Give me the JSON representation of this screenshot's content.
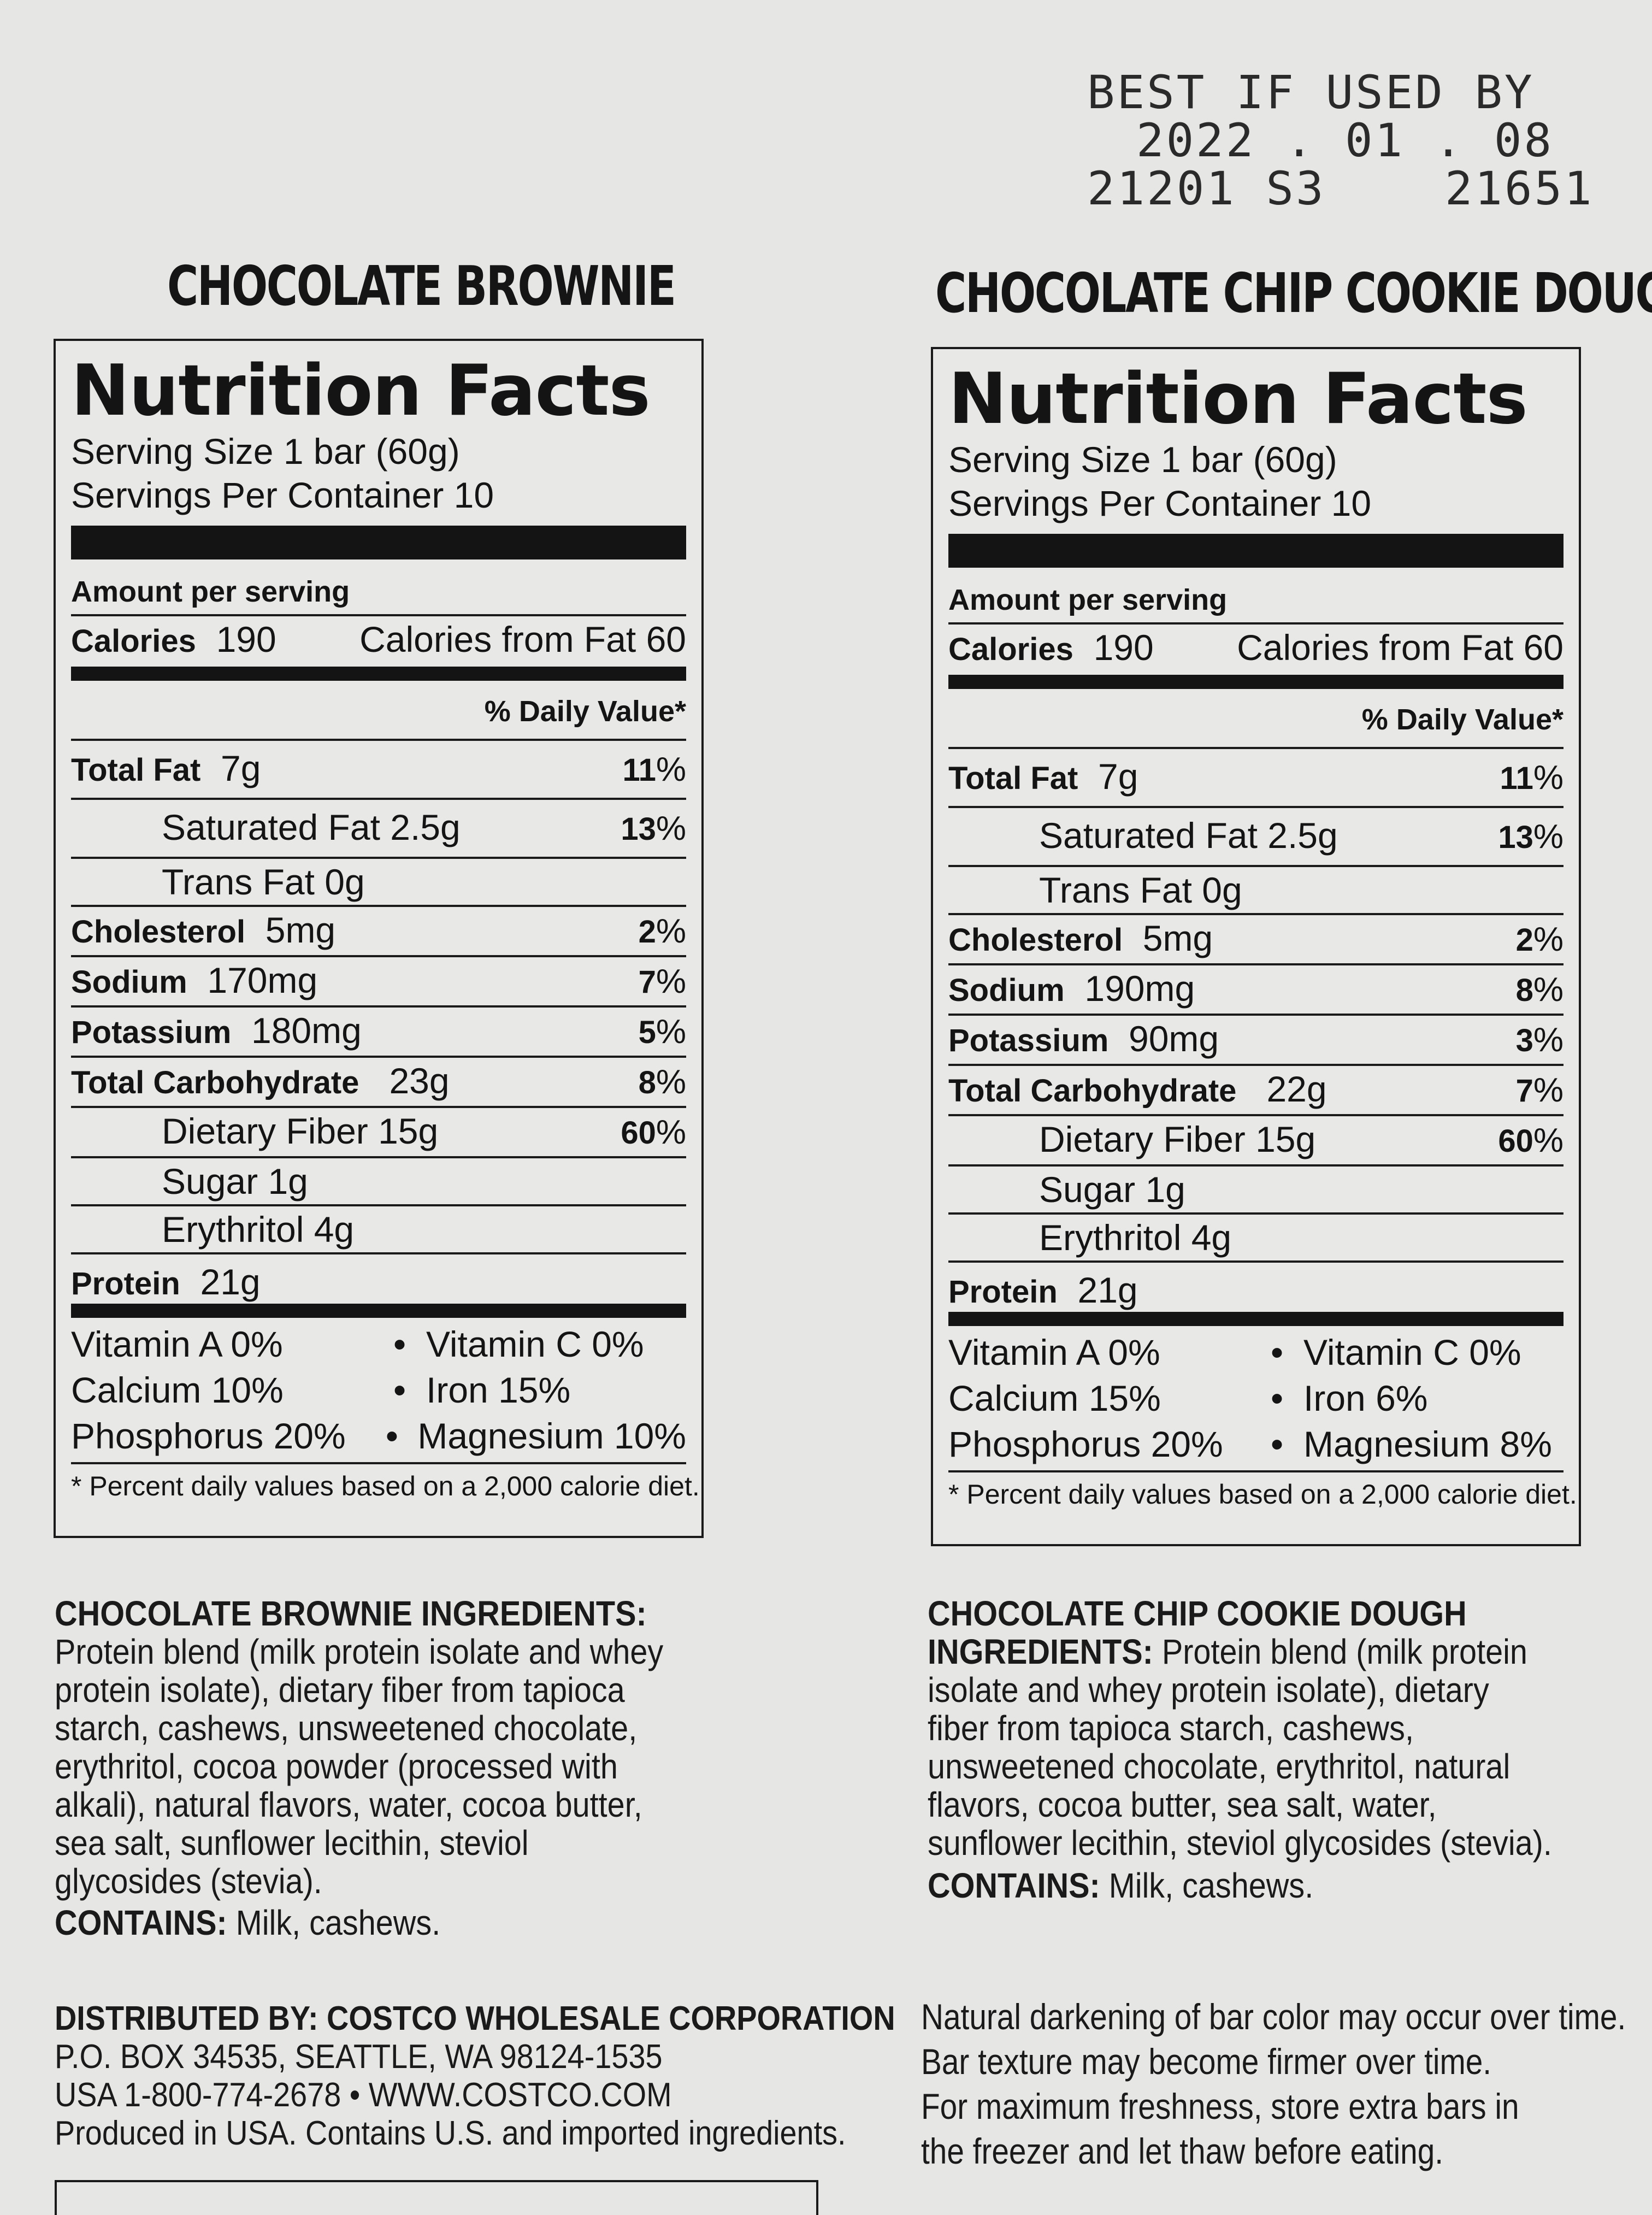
{
  "stamp": {
    "line1": "BEST IF USED BY",
    "line2": "2022 . 01 . 08",
    "line3": "21201 S3    21651"
  },
  "panels": [
    {
      "title": "CHOCOLATE BROWNIE",
      "nf_title": "Nutrition Facts",
      "serving_size": "Serving Size 1 bar (60g)",
      "servings_per_container": "Servings Per Container 10",
      "amount_per_serving": "Amount per serving",
      "calories_label": "Calories",
      "calories_value": "190",
      "calories_from_fat": "Calories from Fat 60",
      "daily_value_header": "% Daily Value*",
      "total_fat": {
        "label": "Total Fat",
        "amount": "7g",
        "pct": "11"
      },
      "saturated_fat": {
        "label": "Saturated Fat 2.5g",
        "pct": "13"
      },
      "trans_fat": {
        "label": "Trans Fat 0g"
      },
      "cholesterol": {
        "label": "Cholesterol",
        "amount": "5mg",
        "pct": "2"
      },
      "sodium": {
        "label": "Sodium",
        "amount": "170mg",
        "pct": "7"
      },
      "potassium": {
        "label": "Potassium",
        "amount": "180mg",
        "pct": "5"
      },
      "total_carb": {
        "label": "Total Carbohydrate",
        "amount": "23g",
        "pct": "8"
      },
      "dietary_fiber": {
        "label": "Dietary Fiber 15g",
        "pct": "60"
      },
      "sugar": {
        "label": "Sugar 1g"
      },
      "erythritol": {
        "label": "Erythritol 4g"
      },
      "protein": {
        "label": "Protein",
        "amount": "21g"
      },
      "vitamins": [
        {
          "left": "Vitamin A 0%",
          "right": "Vitamin C 0%"
        },
        {
          "left": "Calcium 10%",
          "right": "Iron 15%"
        },
        {
          "left": "Phosphorus 20%",
          "right": "Magnesium 10%"
        }
      ],
      "footnote": "* Percent daily values based on a 2,000 calorie diet."
    },
    {
      "title": "CHOCOLATE CHIP COOKIE DOUGH",
      "nf_title": "Nutrition Facts",
      "serving_size": "Serving Size 1 bar (60g)",
      "servings_per_container": "Servings Per Container 10",
      "amount_per_serving": "Amount per serving",
      "calories_label": "Calories",
      "calories_value": "190",
      "calories_from_fat": "Calories from Fat 60",
      "daily_value_header": "% Daily Value*",
      "total_fat": {
        "label": "Total Fat",
        "amount": "7g",
        "pct": "11"
      },
      "saturated_fat": {
        "label": "Saturated Fat 2.5g",
        "pct": "13"
      },
      "trans_fat": {
        "label": "Trans Fat 0g"
      },
      "cholesterol": {
        "label": "Cholesterol",
        "amount": "5mg",
        "pct": "2"
      },
      "sodium": {
        "label": "Sodium",
        "amount": "190mg",
        "pct": "8"
      },
      "potassium": {
        "label": "Potassium",
        "amount": "90mg",
        "pct": "3"
      },
      "total_carb": {
        "label": "Total Carbohydrate",
        "amount": "22g",
        "pct": "7"
      },
      "dietary_fiber": {
        "label": "Dietary Fiber 15g",
        "pct": "60"
      },
      "sugar": {
        "label": "Sugar 1g"
      },
      "erythritol": {
        "label": "Erythritol 4g"
      },
      "protein": {
        "label": "Protein",
        "amount": "21g"
      },
      "vitamins": [
        {
          "left": "Vitamin A 0%",
          "right": "Vitamin C 0%"
        },
        {
          "left": "Calcium 15%",
          "right": "Iron 6%"
        },
        {
          "left": "Phosphorus 20%",
          "right": "Magnesium 8%"
        }
      ],
      "footnote": "* Percent daily values based on a 2,000 calorie diet."
    }
  ],
  "percent_sign": "%",
  "bullet": "•",
  "ingredients_left": {
    "heading": "CHOCOLATE BROWNIE INGREDIENTS:",
    "lines": [
      "Protein blend (milk protein isolate and whey",
      "protein isolate), dietary fiber from tapioca",
      "starch, cashews, unsweetened chocolate,",
      "erythritol, cocoa powder (processed with",
      "alkali), natural flavors, water, cocoa butter,",
      "sea salt,  sunflower lecithin, steviol",
      "glycosides (stevia)."
    ],
    "contains_label": "CONTAINS:",
    "contains_value": " Milk, cashews."
  },
  "ingredients_right": {
    "heading_line1": "CHOCOLATE CHIP COOKIE DOUGH",
    "heading_line2": "INGREDIENTS:",
    "first_line_rest": " Protein blend (milk protein",
    "lines": [
      "isolate and whey protein isolate), dietary",
      "fiber from tapioca starch, cashews,",
      "unsweetened chocolate, erythritol, natural",
      "flavors, cocoa butter, sea salt, water,",
      "sunflower lecithin, steviol glycosides (stevia)."
    ],
    "contains_label": "CONTAINS:",
    "contains_value": " Milk, cashews."
  },
  "distributor": {
    "heading": "DISTRIBUTED BY: COSTCO WHOLESALE CORPORATION",
    "lines": [
      "P.O. BOX 34535, SEATTLE, WA  98124-1535",
      "USA  1-800-774-2678 • WWW.COSTCO.COM",
      "Produced in USA. Contains U.S. and imported ingredients."
    ]
  },
  "storage_note": {
    "lines": [
      "Natural darkening of bar color may occur over time.",
      "Bar texture may become firmer over time.",
      "For maximum freshness, store extra bars in",
      "the freezer and let thaw before eating."
    ]
  }
}
